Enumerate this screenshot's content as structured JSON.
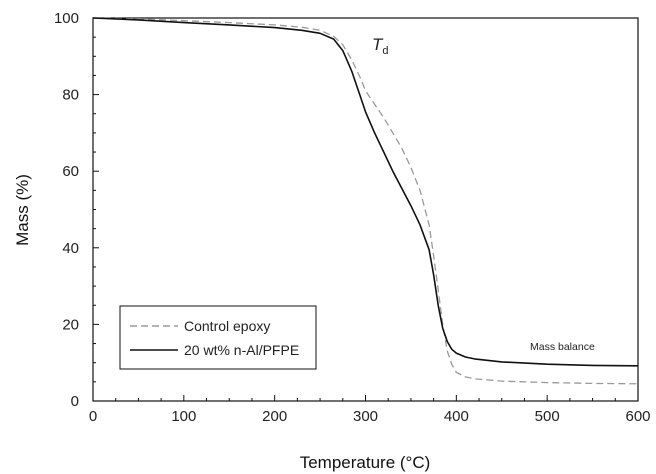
{
  "chart_data": {
    "type": "line",
    "xlabel": "Temperature (°C)",
    "ylabel": "Mass (%)",
    "xlim": [
      0,
      600
    ],
    "ylim": [
      0,
      100
    ],
    "x_ticks": [
      0,
      100,
      200,
      300,
      400,
      500,
      600
    ],
    "y_ticks": [
      0,
      20,
      40,
      60,
      80,
      100
    ],
    "grid": false,
    "legend_position": "bottom-left",
    "annotations": {
      "td_main": "T",
      "td_sub": "d",
      "mass_balance": "Mass balance"
    },
    "series": [
      {
        "name": "Control epoxy",
        "color": "#9a9a9a",
        "dash": "dashed",
        "x": [
          0,
          50,
          100,
          150,
          200,
          230,
          250,
          265,
          275,
          285,
          295,
          300,
          310,
          320,
          330,
          340,
          350,
          360,
          370,
          375,
          380,
          385,
          390,
          395,
          400,
          410,
          420,
          450,
          500,
          550,
          600
        ],
        "y": [
          100,
          99.8,
          99.3,
          98.8,
          98.2,
          97.6,
          96.8,
          95.2,
          93,
          89,
          84,
          81,
          77.5,
          74,
          70,
          66,
          61,
          55,
          46,
          38,
          29,
          20,
          13,
          9.5,
          7.5,
          6.3,
          5.8,
          5.2,
          4.8,
          4.6,
          4.5
        ]
      },
      {
        "name": "20 wt% n-Al/PFPE",
        "color": "#111111",
        "dash": "solid",
        "x": [
          0,
          50,
          100,
          150,
          200,
          230,
          250,
          265,
          275,
          285,
          295,
          300,
          310,
          320,
          330,
          340,
          350,
          360,
          370,
          375,
          380,
          385,
          390,
          395,
          400,
          410,
          420,
          450,
          500,
          550,
          600
        ],
        "y": [
          100,
          99.5,
          98.8,
          98.2,
          97.5,
          96.8,
          96,
          94.5,
          91.5,
          86,
          79,
          75.5,
          70,
          65,
          60,
          55.5,
          51,
          46,
          39.5,
          33,
          25,
          19,
          15.5,
          13.5,
          12.5,
          11.5,
          11,
          10.2,
          9.6,
          9.3,
          9.2
        ]
      }
    ]
  }
}
